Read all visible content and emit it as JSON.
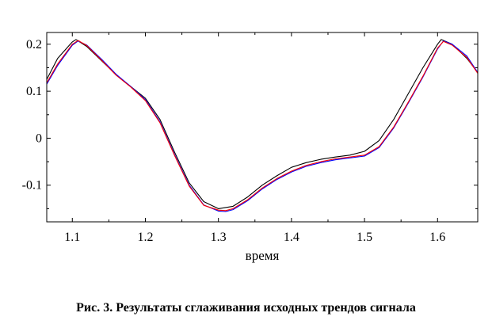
{
  "caption": "Рис. 3.  Результаты сглаживания исходных трендов сигнала",
  "chart_data": {
    "type": "line",
    "title": "",
    "xlabel": "время",
    "ylabel": "",
    "xlim": [
      1.065,
      1.655
    ],
    "ylim": [
      -0.178,
      0.225
    ],
    "grid": false,
    "x_ticks": [
      1.1,
      1.2,
      1.3,
      1.4,
      1.5,
      1.6
    ],
    "x_tick_labels": [
      "1.1",
      "1.2",
      "1.3",
      "1.4",
      "1.5",
      "1.6"
    ],
    "y_ticks": [
      0.2,
      0.1,
      0,
      -0.1
    ],
    "y_tick_labels": [
      "0.2",
      "0.1",
      "0",
      "-0.1"
    ],
    "colors": {
      "axes": "#000000",
      "series_black": "#000000",
      "series_blue": "#0000ff",
      "series_red": "#ff0000"
    },
    "series": [
      {
        "color": "#000000",
        "x": [
          1.065,
          1.08,
          1.1,
          1.105,
          1.12,
          1.14,
          1.16,
          1.18,
          1.2,
          1.22,
          1.24,
          1.26,
          1.28,
          1.3,
          1.32,
          1.34,
          1.36,
          1.38,
          1.4,
          1.42,
          1.44,
          1.46,
          1.48,
          1.5,
          1.52,
          1.54,
          1.56,
          1.58,
          1.6,
          1.605,
          1.62,
          1.64,
          1.655
        ],
        "y": [
          0.125,
          0.17,
          0.205,
          0.21,
          0.195,
          0.165,
          0.135,
          0.11,
          0.085,
          0.04,
          -0.03,
          -0.095,
          -0.135,
          -0.15,
          -0.145,
          -0.125,
          -0.1,
          -0.08,
          -0.062,
          -0.052,
          -0.045,
          -0.04,
          -0.036,
          -0.028,
          -0.005,
          0.04,
          0.095,
          0.15,
          0.2,
          0.21,
          0.2,
          0.17,
          0.14
        ]
      },
      {
        "color": "#0000ff",
        "x": [
          1.065,
          1.08,
          1.1,
          1.108,
          1.12,
          1.14,
          1.16,
          1.18,
          1.2,
          1.22,
          1.24,
          1.26,
          1.28,
          1.3,
          1.31,
          1.32,
          1.34,
          1.36,
          1.38,
          1.4,
          1.42,
          1.44,
          1.46,
          1.48,
          1.5,
          1.52,
          1.54,
          1.56,
          1.58,
          1.6,
          1.608,
          1.62,
          1.64,
          1.655
        ],
        "y": [
          0.115,
          0.155,
          0.198,
          0.207,
          0.198,
          0.168,
          0.136,
          0.11,
          0.082,
          0.035,
          -0.035,
          -0.1,
          -0.142,
          -0.155,
          -0.156,
          -0.152,
          -0.133,
          -0.108,
          -0.088,
          -0.072,
          -0.06,
          -0.052,
          -0.046,
          -0.042,
          -0.038,
          -0.02,
          0.022,
          0.075,
          0.13,
          0.19,
          0.207,
          0.2,
          0.175,
          0.14
        ]
      },
      {
        "color": "#ff0000",
        "x": [
          1.065,
          1.08,
          1.1,
          1.108,
          1.12,
          1.14,
          1.16,
          1.18,
          1.2,
          1.22,
          1.24,
          1.26,
          1.28,
          1.3,
          1.31,
          1.32,
          1.34,
          1.36,
          1.38,
          1.4,
          1.42,
          1.44,
          1.46,
          1.48,
          1.5,
          1.52,
          1.54,
          1.56,
          1.58,
          1.6,
          1.608,
          1.62,
          1.64,
          1.655
        ],
        "y": [
          0.118,
          0.158,
          0.2,
          0.208,
          0.197,
          0.166,
          0.134,
          0.109,
          0.08,
          0.033,
          -0.037,
          -0.102,
          -0.143,
          -0.153,
          -0.154,
          -0.15,
          -0.131,
          -0.106,
          -0.086,
          -0.07,
          -0.058,
          -0.05,
          -0.044,
          -0.04,
          -0.036,
          -0.018,
          0.024,
          0.077,
          0.132,
          0.192,
          0.206,
          0.198,
          0.172,
          0.138
        ]
      }
    ]
  }
}
